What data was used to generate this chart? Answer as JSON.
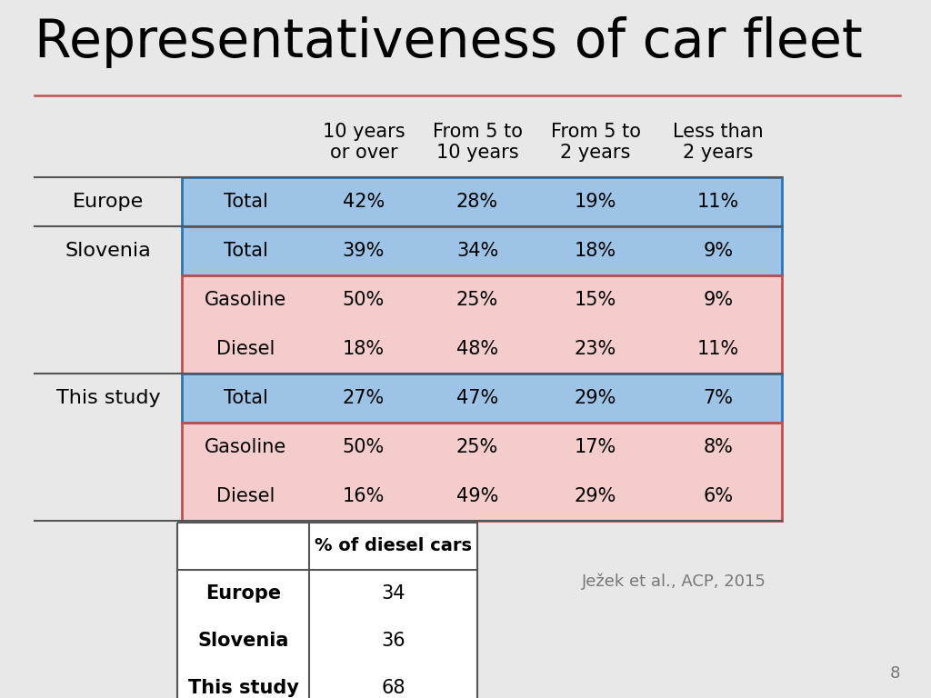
{
  "title": "Representativeness of car fleet",
  "background_color": "#e8e8e8",
  "title_color": "#000000",
  "title_fontsize": 42,
  "separator_line_color": "#c0504d",
  "page_number": "8",
  "col_headers": [
    "10 years\nor over",
    "From 5 to\n10 years",
    "From 5 to\n2 years",
    "Less than\n2 years"
  ],
  "main_table_rows": [
    {
      "group": "Europe",
      "type": "Total",
      "bg": "#9dc3e6",
      "border_color": "#2e74b5",
      "values": [
        "42%",
        "28%",
        "19%",
        "11%"
      ]
    },
    {
      "group": "Slovenia",
      "type": "Total",
      "bg": "#9dc3e6",
      "border_color": "#2e74b5",
      "values": [
        "39%",
        "34%",
        "18%",
        "9%"
      ]
    },
    {
      "group": "",
      "type": "Gasoline",
      "bg": "#f4cccc",
      "border_color": "#c0504d",
      "values": [
        "50%",
        "25%",
        "15%",
        "9%"
      ]
    },
    {
      "group": "",
      "type": "Diesel",
      "bg": "#f4cccc",
      "border_color": "#c0504d",
      "values": [
        "18%",
        "48%",
        "23%",
        "11%"
      ]
    },
    {
      "group": "This study",
      "type": "Total",
      "bg": "#9dc3e6",
      "border_color": "#2e74b5",
      "values": [
        "27%",
        "47%",
        "29%",
        "7%"
      ]
    },
    {
      "group": "",
      "type": "Gasoline",
      "bg": "#f4cccc",
      "border_color": "#c0504d",
      "values": [
        "50%",
        "25%",
        "17%",
        "8%"
      ]
    },
    {
      "group": "",
      "type": "Diesel",
      "bg": "#f4cccc",
      "border_color": "#c0504d",
      "values": [
        "16%",
        "49%",
        "29%",
        "6%"
      ]
    }
  ],
  "sub_table_rows": [
    {
      "label": "Europe",
      "value": "34"
    },
    {
      "label": "Slovenia",
      "value": "36"
    },
    {
      "label": "This study",
      "value": "68"
    }
  ],
  "citation": "Ježek et al., ACP, 2015",
  "blue_border": "#2e74b5",
  "red_border": "#c0504d",
  "dark_line": "#555555"
}
